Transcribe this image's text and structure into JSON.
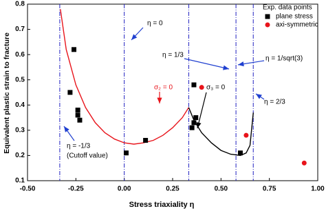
{
  "chart_data": {
    "type": "scatter",
    "x_label": "Stress triaxiality η",
    "y_label": "Equivalent plastic strain to fracture",
    "xlim": [
      -0.5,
      1.0
    ],
    "xticks": [
      {
        "value": -0.5,
        "label": "-0.50"
      },
      {
        "value": -0.25,
        "label": "-0.25"
      },
      {
        "value": 0,
        "label": "0.00"
      },
      {
        "value": 0.25,
        "label": "0.25"
      },
      {
        "value": 0.5,
        "label": "0.50"
      },
      {
        "value": 0.75,
        "label": "0.75"
      },
      {
        "value": 1.0,
        "label": "1.00"
      }
    ],
    "ylim": [
      0.1,
      0.8
    ],
    "yticks": [
      0.1,
      0.2,
      0.3,
      0.4,
      0.5,
      0.6,
      0.7,
      0.8
    ],
    "legend_title": "Exp. data points",
    "legend_position": "upper-right",
    "series": [
      {
        "name": "plane stress",
        "color": "#000000",
        "marker": "square",
        "x": [
          -0.26,
          -0.28,
          -0.24,
          -0.24,
          -0.23,
          0.01,
          0.11,
          0.35,
          0.36,
          0.37,
          0.36,
          0.6
        ],
        "values": [
          0.62,
          0.45,
          0.38,
          0.36,
          0.34,
          0.21,
          0.26,
          0.31,
          0.33,
          0.35,
          0.48,
          0.21
        ]
      },
      {
        "name": "axi-symmetric",
        "color": "#e8141b",
        "marker": "circle",
        "x": [
          0.4,
          0.63,
          0.93
        ],
        "values": [
          0.47,
          0.28,
          0.17
        ]
      }
    ],
    "curves": [
      {
        "color": "#e8141b",
        "x": [
          -0.33,
          -0.3,
          -0.25,
          -0.2,
          -0.15,
          -0.1,
          -0.05,
          0,
          0.05,
          0.1,
          0.15,
          0.2,
          0.25,
          0.3,
          0.333
        ],
        "values": [
          0.78,
          0.62,
          0.48,
          0.39,
          0.33,
          0.29,
          0.265,
          0.25,
          0.245,
          0.25,
          0.26,
          0.28,
          0.31,
          0.35,
          0.39
        ]
      },
      {
        "color": "#000000",
        "x": [
          0.333,
          0.36,
          0.4,
          0.45,
          0.5,
          0.55,
          0.6,
          0.63,
          0.65,
          0.667
        ],
        "values": [
          0.39,
          0.34,
          0.29,
          0.25,
          0.22,
          0.205,
          0.2,
          0.21,
          0.24,
          0.37
        ]
      }
    ],
    "vlines": {
      "color": "#2020c0",
      "x": [
        -0.3333,
        0,
        0.3333,
        0.5774,
        0.6667
      ]
    },
    "annotations": [
      {
        "text": "η = 0",
        "color": "#000000"
      },
      {
        "text": "η = 1/3",
        "color": "#000000"
      },
      {
        "text": "η = 1/sqrt(3)",
        "color": "#000000"
      },
      {
        "text": "η = 2/3",
        "color": "#000000"
      },
      {
        "text": "η = -1/3",
        "color": "#000000"
      },
      {
        "text": "(Cutoff value)",
        "color": "#000000"
      },
      {
        "text": "σ₂ = 0",
        "color": "#e8141b"
      },
      {
        "text": "σ₃ = 0",
        "color": "#000000"
      }
    ]
  }
}
